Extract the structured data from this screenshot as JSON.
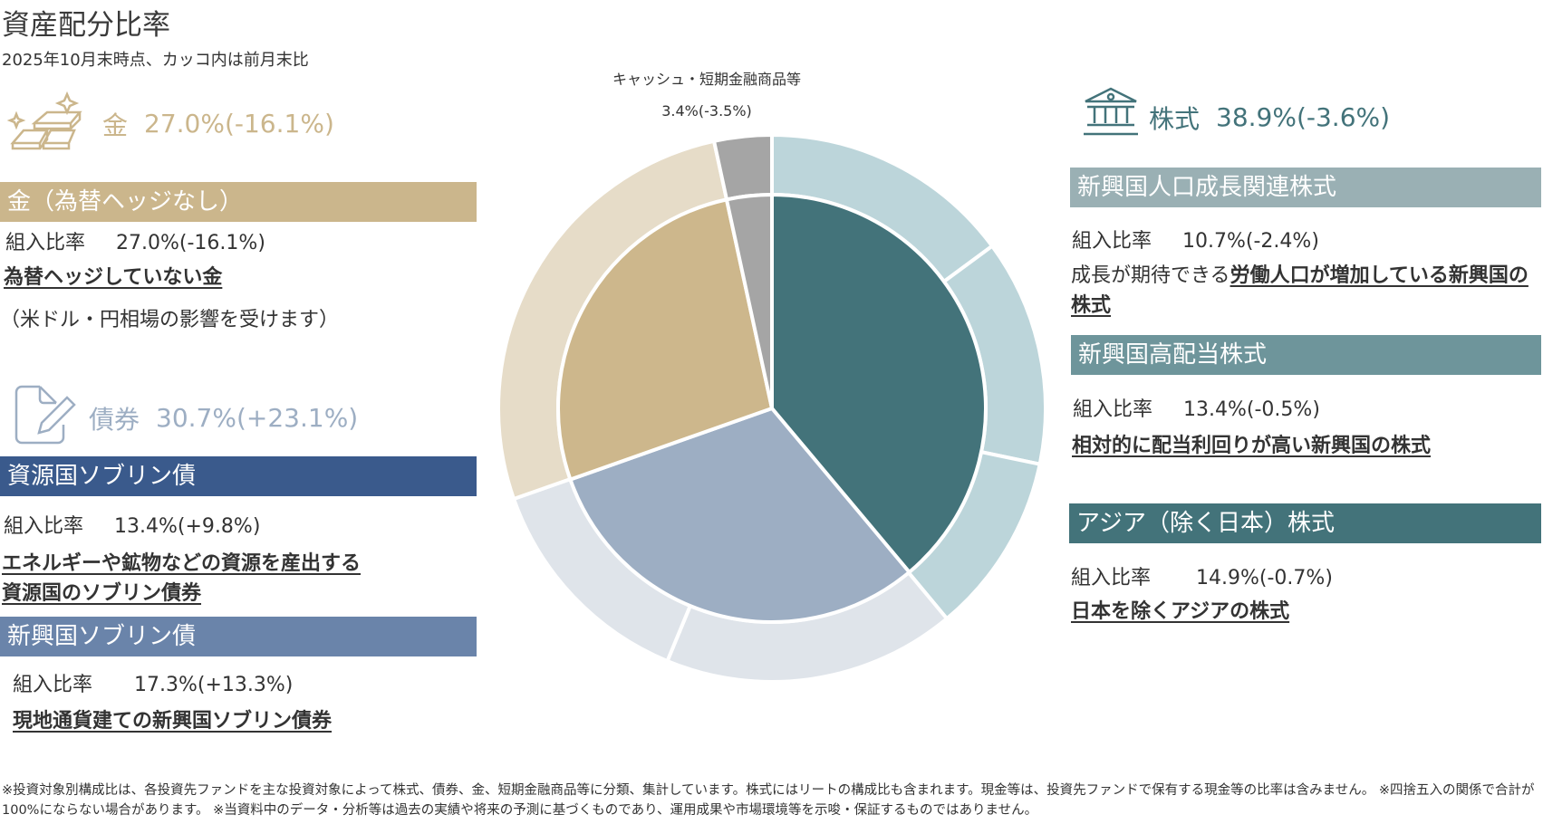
{
  "header": {
    "title": "資産配分比率",
    "subtitle": "2025年10月末時点、カッコ内は前月末比"
  },
  "gold": {
    "icon": "gold-bars-icon",
    "color": "#cbb68c",
    "label": "金",
    "value": "27.0%(-16.1%)",
    "funds": [
      {
        "name": "金（為替ヘッジなし）",
        "bar_color": "#cbb68c",
        "ratio_label": "組入比率",
        "ratio_value": "27.0%(-16.1%)",
        "desc": "為替ヘッジしていない金",
        "note": "（米ドル・円相場の影響を受けます）"
      }
    ]
  },
  "bonds": {
    "icon": "document-pen-icon",
    "color": "#9daec3",
    "label": "債券",
    "value": "30.7%(+23.1%)",
    "funds": [
      {
        "name": "資源国ソブリン債",
        "bar_color": "#3a5a8c",
        "ratio_label": "組入比率",
        "ratio_value": "13.4%(+9.8%)",
        "desc_line1": "エネルギーや鉱物などの資源を産出する",
        "desc_line2": "資源国のソブリン債券"
      },
      {
        "name": "新興国ソブリン債",
        "bar_color": "#6a84aa",
        "ratio_label": "組入比率",
        "ratio_value": "17.3%(+13.3%)",
        "desc": "現地通貨建ての新興国ソブリン債券"
      }
    ]
  },
  "equities": {
    "icon": "bank-building-icon",
    "color": "#43737a",
    "label": "株式",
    "value": "38.9%(-3.6%)",
    "funds": [
      {
        "name": "新興国人口成長関連株式",
        "bar_color": "#9ab0b4",
        "ratio_label": "組入比率",
        "ratio_value": "10.7%(-2.4%)",
        "desc_prefix": "成長が期待できる",
        "desc_underlined": "労働人口が増加している新興国の株式"
      },
      {
        "name": "新興国高配当株式",
        "bar_color": "#6e959b",
        "ratio_label": "組入比率",
        "ratio_value": "13.4%(-0.5%)",
        "desc": "相対的に配当利回りが高い新興国の株式"
      },
      {
        "name": "アジア（除く日本）株式",
        "bar_color": "#43737a",
        "ratio_label": "組入比率",
        "ratio_value": "14.9%(-0.7%)",
        "desc": "日本を除くアジアの株式"
      }
    ]
  },
  "cash": {
    "label": "キャッシュ・短期金融商品等",
    "value": "3.4%(-3.5%)"
  },
  "chart_data": {
    "type": "pie",
    "inner": [
      {
        "label": "株式",
        "value": 38.9,
        "color": "#43737a"
      },
      {
        "label": "債券",
        "value": 30.7,
        "color": "#9daec3"
      },
      {
        "label": "金",
        "value": 27.0,
        "color": "#cdb78c"
      },
      {
        "label": "キャッシュ・短期金融商品等",
        "value": 3.4,
        "color": "#a5a5a5"
      }
    ],
    "outer": [
      {
        "label": "アジア（除く日本）株式",
        "value": 14.9,
        "color": "#bcd5da"
      },
      {
        "label": "新興国高配当株式",
        "value": 13.4,
        "color": "#bcd5da"
      },
      {
        "label": "新興国人口成長関連株式",
        "value": 10.7,
        "color": "#bcd5da"
      },
      {
        "label": "新興国ソブリン債",
        "value": 17.3,
        "color": "#dfe4ea"
      },
      {
        "label": "資源国ソブリン債",
        "value": 13.4,
        "color": "#dfe4ea"
      },
      {
        "label": "金（為替ヘッジなし）",
        "value": 27.0,
        "color": "#e6dcc8"
      },
      {
        "label": "キャッシュ・短期金融商品等",
        "value": 3.4,
        "color": "#a5a5a5"
      }
    ]
  },
  "footer": {
    "text": "※投資対象別構成比は、各投資先ファンドを主な投資対象によって株式、債券、金、短期金融商品等に分類、集計しています。株式にはリートの構成比も含まれます。現金等は、投資先ファンドで保有する現金等の比率は含みません。 ※四捨五入の関係で合計が100%にならない場合があります。 ※当資料中のデータ・分析等は過去の実績や将来の予測に基づくものであり、運用成果や市場環境等を示唆・保証するものではありません。"
  }
}
